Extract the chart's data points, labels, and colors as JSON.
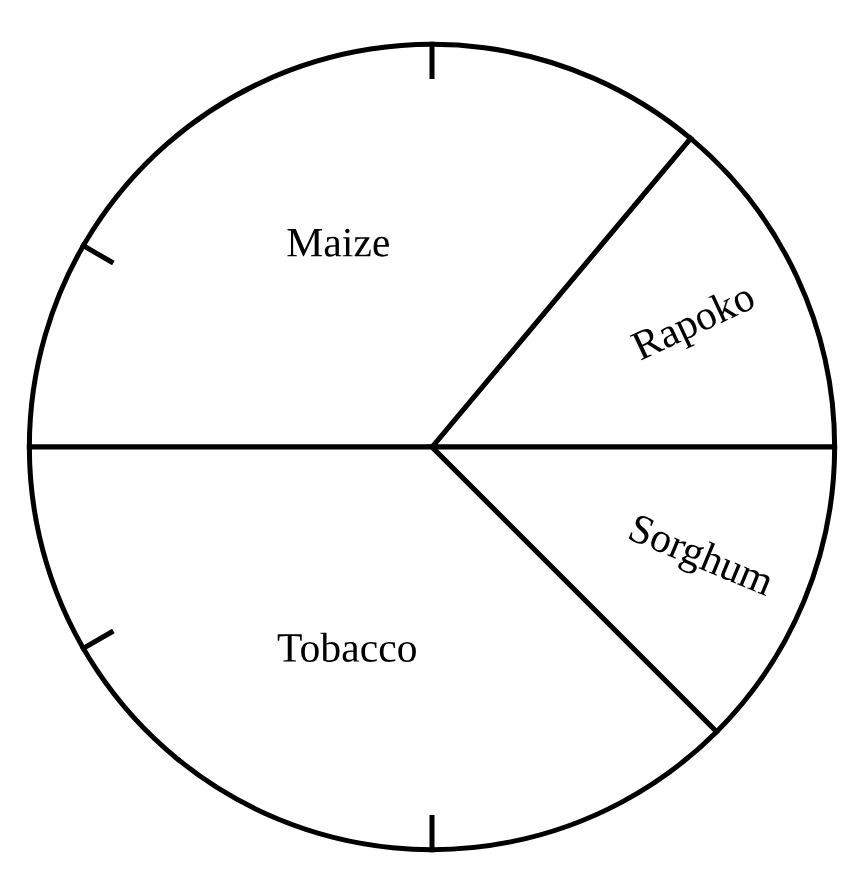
{
  "chart_data": {
    "type": "pie",
    "categories": [
      "Rapoko",
      "Maize",
      "Tobacco",
      "Sorghum"
    ],
    "values": [
      13.9,
      36.1,
      37.5,
      12.5
    ],
    "colors": [
      "#ffffff",
      "#ffffff",
      "#ffffff",
      "#ffffff"
    ]
  }
}
